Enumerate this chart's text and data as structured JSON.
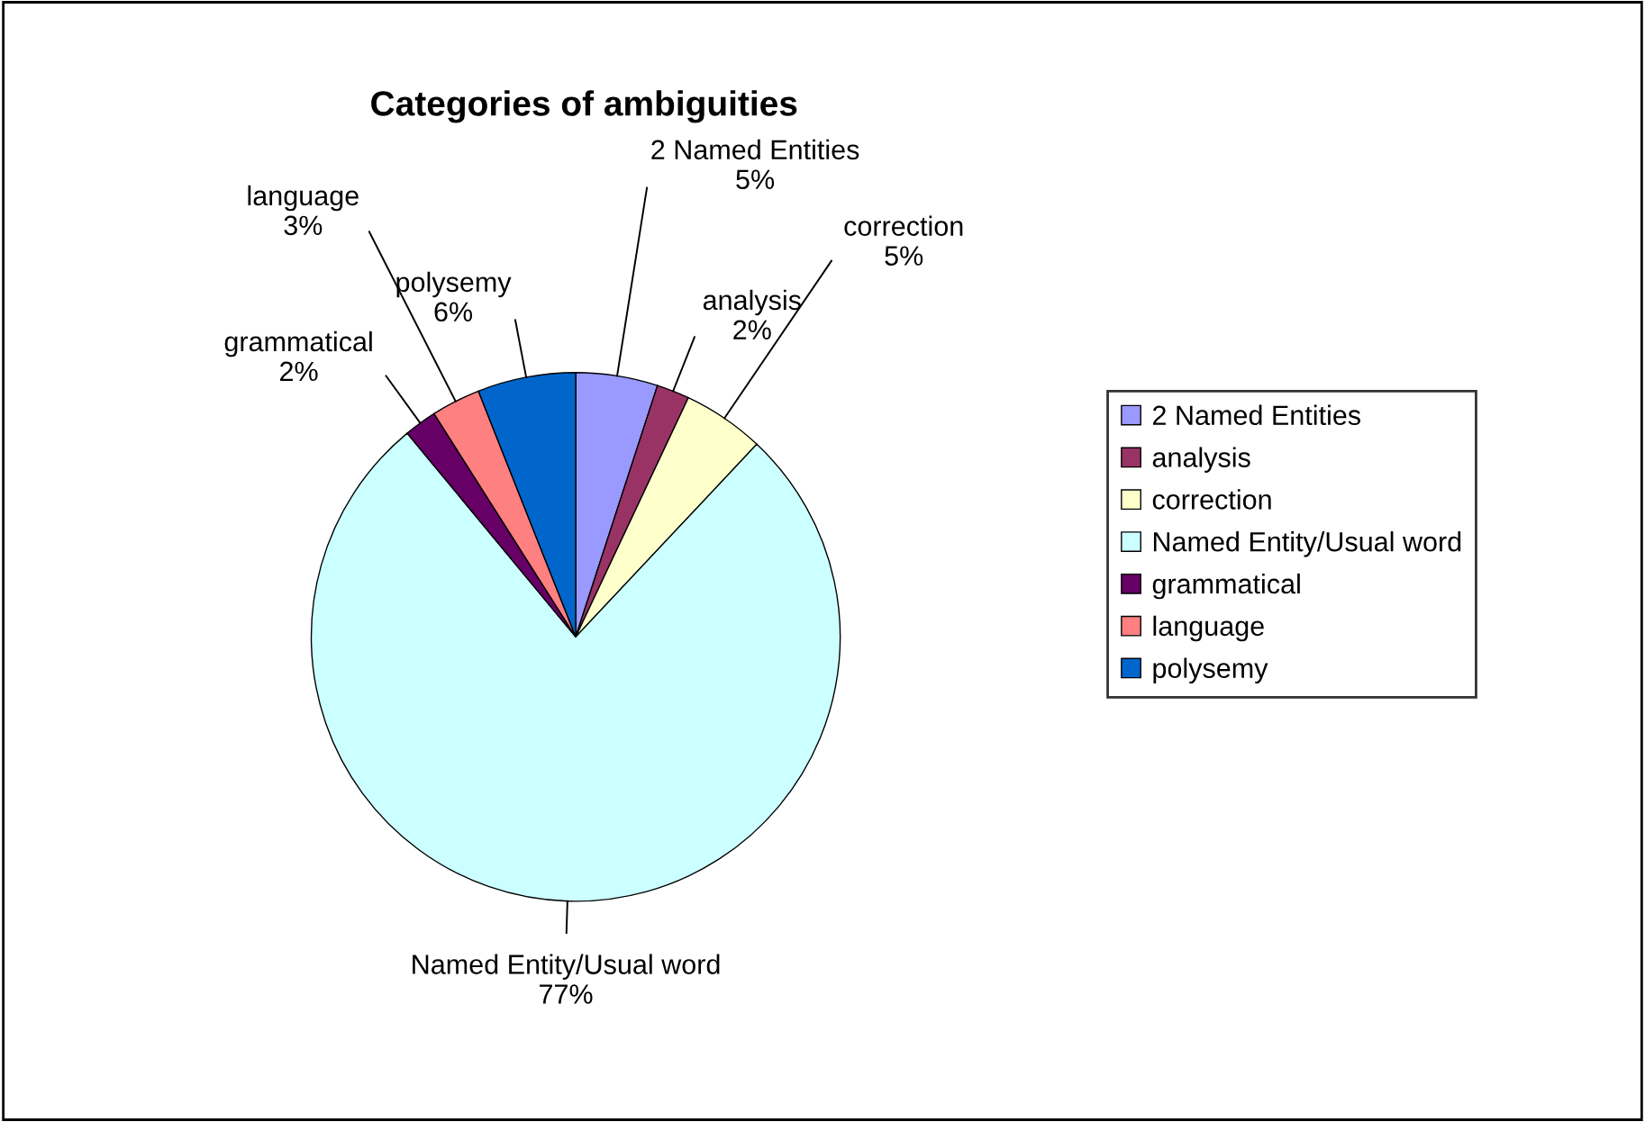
{
  "chart_data": {
    "type": "pie",
    "title": "Categories of ambiguities",
    "categories": [
      "2 Named Entities",
      "analysis",
      "correction",
      "Named Entity/Usual word",
      "grammatical",
      "language",
      "polysemy"
    ],
    "values": [
      5,
      2,
      5,
      77,
      2,
      3,
      6
    ],
    "value_labels": [
      "5%",
      "2%",
      "5%",
      "77%",
      "2%",
      "3%",
      "6%"
    ],
    "colors": [
      "#9999ff",
      "#993366",
      "#ffffcc",
      "#ccffff",
      "#660066",
      "#ff8080",
      "#0066cc"
    ],
    "legend": "right"
  }
}
